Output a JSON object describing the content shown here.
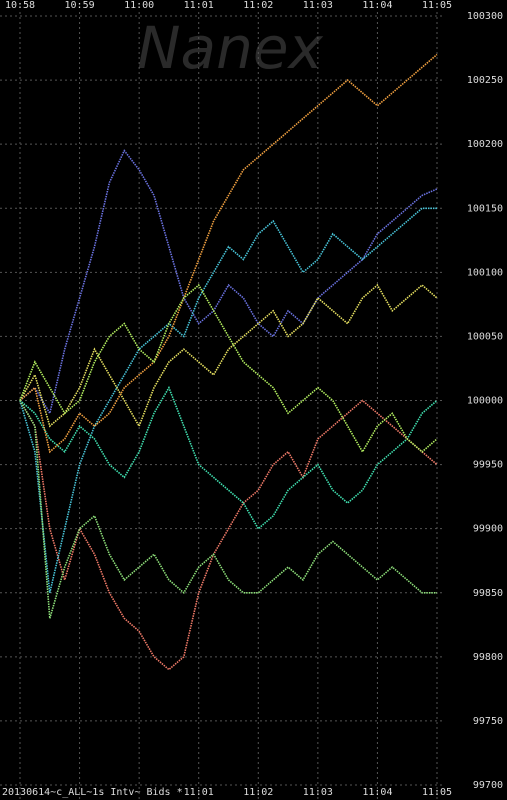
{
  "chart_data": {
    "type": "line",
    "watermark": "Nanex",
    "footer": "20130614~c_ALL~1s Intv~ Bids *",
    "x": [
      658,
      658.25,
      658.5,
      658.75,
      659,
      659.25,
      659.5,
      659.75,
      660,
      660.25,
      660.5,
      660.75,
      661,
      661.25,
      661.5,
      661.75,
      662,
      662.25,
      662.5,
      662.75,
      663,
      663.25,
      663.5,
      663.75,
      664,
      664.25,
      664.5,
      664.75,
      665
    ],
    "xlim": [
      658,
      665
    ],
    "xticks": [
      {
        "value": 658,
        "label": "10:58"
      },
      {
        "value": 659,
        "label": "10:59"
      },
      {
        "value": 660,
        "label": "11:00"
      },
      {
        "value": 661,
        "label": "11:01"
      },
      {
        "value": 662,
        "label": "11:02"
      },
      {
        "value": 663,
        "label": "11:03"
      },
      {
        "value": 664,
        "label": "11:04"
      },
      {
        "value": 665,
        "label": "11:05"
      }
    ],
    "ylim": [
      99700,
      100300
    ],
    "yticks": [
      99700,
      99750,
      99800,
      99850,
      99900,
      99950,
      100000,
      100050,
      100100,
      100150,
      100200,
      100250,
      100300
    ],
    "grid": true,
    "series": [
      {
        "color": "#6a72e0",
        "values": [
          100000,
          100010,
          99990,
          100040,
          100080,
          100120,
          100170,
          100195,
          100180,
          100160,
          100120,
          100080,
          100060,
          100070,
          100090,
          100080,
          100060,
          100050,
          100070,
          100060,
          100080,
          100090,
          100100,
          100110,
          100130,
          100140,
          100150,
          100160,
          100165
        ]
      },
      {
        "color": "#f07a68",
        "values": [
          100000,
          99980,
          99900,
          99860,
          99900,
          99880,
          99850,
          99830,
          99820,
          99800,
          99790,
          99800,
          99850,
          99880,
          99900,
          99920,
          99930,
          99950,
          99960,
          99940,
          99970,
          99980,
          99990,
          100000,
          99990,
          99980,
          99970,
          99960,
          99950
        ]
      },
      {
        "color": "#48c4d8",
        "values": [
          100000,
          99960,
          99850,
          99900,
          99950,
          99980,
          100000,
          100020,
          100040,
          100050,
          100060,
          100050,
          100080,
          100100,
          100120,
          100110,
          100130,
          100140,
          100120,
          100100,
          100110,
          100130,
          100120,
          100110,
          100120,
          100130,
          100140,
          100150,
          100150
        ]
      },
      {
        "color": "#8ee07a",
        "values": [
          100000,
          99980,
          99830,
          99870,
          99900,
          99910,
          99880,
          99860,
          99870,
          99880,
          99860,
          99850,
          99870,
          99880,
          99860,
          99850,
          99850,
          99860,
          99870,
          99860,
          99880,
          99890,
          99880,
          99870,
          99860,
          99870,
          99860,
          99850,
          99850
        ]
      },
      {
        "color": "#e6e060",
        "values": [
          100000,
          100020,
          99980,
          99990,
          100010,
          100040,
          100020,
          100000,
          99980,
          100010,
          100030,
          100040,
          100030,
          100020,
          100040,
          100050,
          100060,
          100070,
          100050,
          100060,
          100080,
          100070,
          100060,
          100080,
          100090,
          100070,
          100080,
          100090,
          100080
        ]
      },
      {
        "color": "#40e0b0",
        "values": [
          100000,
          99990,
          99970,
          99960,
          99980,
          99970,
          99950,
          99940,
          99960,
          99990,
          100010,
          99980,
          99950,
          99940,
          99930,
          99920,
          99900,
          99910,
          99930,
          99940,
          99950,
          99930,
          99920,
          99930,
          99950,
          99960,
          99970,
          99990,
          100000
        ]
      },
      {
        "color": "#f0a040",
        "values": [
          100000,
          100010,
          99960,
          99970,
          99990,
          99980,
          99990,
          100010,
          100020,
          100030,
          100050,
          100080,
          100110,
          100140,
          100160,
          100180,
          100190,
          100200,
          100210,
          100220,
          100230,
          100240,
          100250,
          100240,
          100230,
          100240,
          100250,
          100260,
          100270
        ]
      },
      {
        "color": "#b4f060",
        "values": [
          100000,
          100030,
          100010,
          99990,
          100000,
          100030,
          100050,
          100060,
          100040,
          100030,
          100060,
          100080,
          100090,
          100070,
          100050,
          100030,
          100020,
          100010,
          99990,
          100000,
          100010,
          100000,
          99980,
          99960,
          99980,
          99990,
          99970,
          99960,
          99970
        ]
      }
    ]
  }
}
